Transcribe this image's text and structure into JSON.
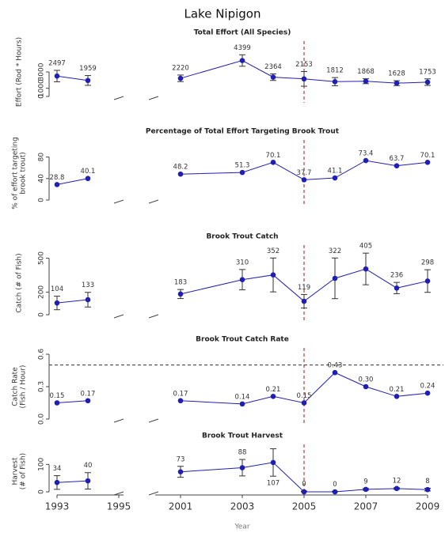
{
  "title": "Lake Nipigon",
  "chart_data": [
    {
      "type": "line",
      "title": "Total Effort (All Species)",
      "ylabel": [
        "Effort (Rod * Hours)"
      ],
      "x": [
        1993,
        1994,
        2001,
        2003,
        2004,
        2005,
        2006,
        2007,
        2008,
        2009
      ],
      "xlim": [
        1993,
        2009
      ],
      "axis_break": [
        1995,
        2001
      ],
      "vline": 2005,
      "values": [
        2497,
        1959,
        2220,
        4399,
        2364,
        2153,
        1812,
        1868,
        1628,
        1753
      ],
      "errors": [
        700,
        600,
        400,
        700,
        400,
        900,
        500,
        300,
        300,
        400
      ],
      "ylim": [
        0,
        6000
      ],
      "yticks": [
        0,
        1000,
        3000
      ],
      "color": "#1f1fb4"
    },
    {
      "type": "line",
      "title": "Percentage of Total Effort Targeting Brook Trout",
      "ylabel": [
        "% of effort targeting",
        "brook trout)"
      ],
      "x": [
        1993,
        1994,
        2001,
        2003,
        2004,
        2005,
        2006,
        2007,
        2008,
        2009
      ],
      "xlim": [
        1993,
        2009
      ],
      "axis_break": [
        1995,
        2001
      ],
      "vline": 2005,
      "values": [
        28.8,
        40.1,
        48.2,
        51.3,
        70.1,
        37.7,
        41.1,
        73.4,
        63.7,
        70.1
      ],
      "ylim": [
        0,
        100
      ],
      "yticks": [
        0,
        40,
        80
      ],
      "color": "#1f1fb4"
    },
    {
      "type": "line",
      "title": "Brook Trout Catch",
      "ylabel": [
        "Catch (# of Fish)"
      ],
      "x": [
        1993,
        1994,
        2001,
        2003,
        2004,
        2005,
        2006,
        2007,
        2008,
        2009
      ],
      "xlim": [
        1993,
        2009
      ],
      "axis_break": [
        1995,
        2001
      ],
      "vline": 2005,
      "values": [
        104,
        133,
        183,
        310,
        352,
        119,
        322,
        405,
        236,
        298
      ],
      "errors": [
        60,
        65,
        40,
        90,
        150,
        60,
        180,
        140,
        50,
        100
      ],
      "ylim": [
        0,
        560
      ],
      "yticks": [
        0,
        200,
        500
      ],
      "color": "#1f1fb4"
    },
    {
      "type": "line",
      "title": "Brook Trout Catch Rate",
      "ylabel": [
        "Catch Rate",
        "(Fish / Hour)"
      ],
      "x": [
        1993,
        1994,
        2001,
        2003,
        2004,
        2005,
        2006,
        2007,
        2008,
        2009
      ],
      "xlim": [
        1993,
        2009
      ],
      "axis_break": [
        1995,
        2001
      ],
      "vline": 2005,
      "hline": 0.5,
      "values": [
        0.15,
        0.17,
        0.17,
        0.14,
        0.21,
        0.15,
        0.43,
        0.3,
        0.21,
        0.24
      ],
      "value_labels": [
        "0.15",
        "0.17",
        "0.17",
        "0.14",
        "0.21",
        "0.15",
        "0.43",
        "0.30",
        "0.21",
        "0.24"
      ],
      "ylim": [
        0,
        0.6
      ],
      "yticks": [
        {
          "value": 0,
          "label": "0.0"
        },
        0.3,
        0.6
      ],
      "color": "#1f1fb4"
    },
    {
      "type": "line",
      "title": "Brook Trout Harvest",
      "ylabel": [
        "Harvest",
        "(# of Fish)"
      ],
      "x": [
        1993,
        1994,
        2001,
        2003,
        2004,
        2005,
        2006,
        2007,
        2008,
        2009
      ],
      "xlim": [
        1993,
        2009
      ],
      "axis_break": [
        1995,
        2001
      ],
      "vline": 2005,
      "values": [
        34,
        40,
        73,
        88,
        107,
        0,
        0,
        9,
        12,
        8
      ],
      "errors": [
        25,
        30,
        20,
        30,
        50,
        3,
        2,
        3,
        3,
        5
      ],
      "ylim": [
        0,
        150
      ],
      "yticks": [
        0,
        100
      ],
      "color": "#1f1fb4",
      "xticks": [
        1993,
        1995,
        2001,
        2003,
        2005,
        2007,
        2009
      ],
      "xlabel": "Year"
    }
  ]
}
